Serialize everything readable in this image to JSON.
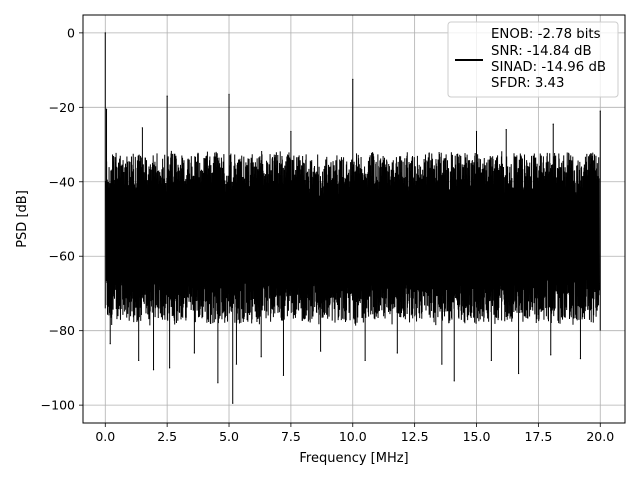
{
  "chart_data": {
    "type": "line",
    "title": "",
    "xlabel": "Frequency [MHz]",
    "ylabel": "PSD [dB]",
    "xlim": [
      -0.9,
      21.0
    ],
    "ylim": [
      -104.8,
      4.8
    ],
    "xticks": [
      0.0,
      2.5,
      5.0,
      7.5,
      10.0,
      12.5,
      15.0,
      17.5,
      20.0
    ],
    "xtick_labels": [
      "0.0",
      "2.5",
      "5.0",
      "7.5",
      "10.0",
      "12.5",
      "15.0",
      "17.5",
      "20.0"
    ],
    "yticks": [
      0,
      -20,
      -40,
      -60,
      -80,
      -100
    ],
    "ytick_labels": [
      "0",
      "−20",
      "−40",
      "−60",
      "−80",
      "−100"
    ],
    "grid": true,
    "legend_position": "top-right",
    "legend_lines": [
      "ENOB: -2.78 bits",
      "SNR: -14.84 dB",
      "SINAD: -14.96 dB",
      "SFDR: 3.43"
    ],
    "series": [
      {
        "color": "#000000",
        "noise_band": {
          "x_range": [
            0.0,
            20.0
          ],
          "upper_db": -32,
          "lower_db": -78
        },
        "peaks": [
          {
            "x": 0.0,
            "y": 0.0
          },
          {
            "x": 0.05,
            "y": -20.5
          },
          {
            "x": 1.5,
            "y": -25.5
          },
          {
            "x": 2.5,
            "y": -17.0
          },
          {
            "x": 5.0,
            "y": -16.5
          },
          {
            "x": 7.5,
            "y": -26.5
          },
          {
            "x": 10.0,
            "y": -12.5
          },
          {
            "x": 15.0,
            "y": -26.5
          },
          {
            "x": 16.2,
            "y": -26.0
          },
          {
            "x": 18.1,
            "y": -24.5
          },
          {
            "x": 20.0,
            "y": -21.0
          }
        ],
        "dips": [
          {
            "x": 0.2,
            "y": -83.5
          },
          {
            "x": 1.35,
            "y": -88.0
          },
          {
            "x": 1.95,
            "y": -90.5
          },
          {
            "x": 2.6,
            "y": -90.0
          },
          {
            "x": 3.6,
            "y": -86.0
          },
          {
            "x": 4.55,
            "y": -94.0
          },
          {
            "x": 5.15,
            "y": -99.5
          },
          {
            "x": 5.3,
            "y": -89.0
          },
          {
            "x": 6.3,
            "y": -87.0
          },
          {
            "x": 7.2,
            "y": -92.0
          },
          {
            "x": 8.7,
            "y": -85.5
          },
          {
            "x": 10.5,
            "y": -88.0
          },
          {
            "x": 11.8,
            "y": -86.0
          },
          {
            "x": 13.6,
            "y": -89.0
          },
          {
            "x": 14.1,
            "y": -93.5
          },
          {
            "x": 15.6,
            "y": -88.0
          },
          {
            "x": 16.7,
            "y": -91.5
          },
          {
            "x": 18.0,
            "y": -86.5
          },
          {
            "x": 19.2,
            "y": -87.5
          }
        ]
      }
    ]
  }
}
